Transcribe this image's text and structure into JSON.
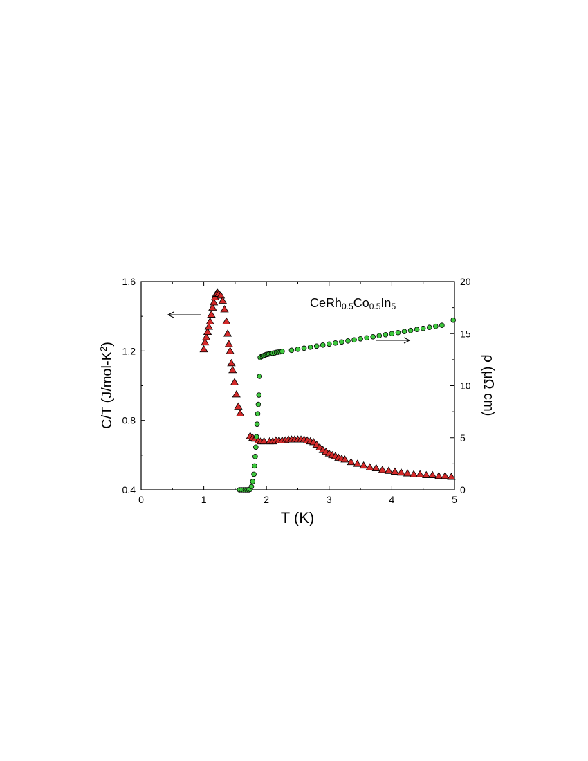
{
  "chart_data": {
    "type": "scatter",
    "annotation": {
      "base": "CeRh",
      "s1": "0.5",
      "mid": "Co",
      "s2": "0.5",
      "mid2": "In",
      "s3": "5"
    },
    "x_axis": {
      "label": "T (K)",
      "range": [
        0,
        5
      ],
      "ticks": [
        0,
        1,
        2,
        3,
        4,
        5
      ]
    },
    "y_left": {
      "label_main": "C/T (J/mol-K",
      "label_sup": "2",
      "label_end": ")",
      "range": [
        0.4,
        1.6
      ],
      "ticks": [
        0.4,
        0.8,
        1.2,
        1.6
      ],
      "tick_labels": [
        "0.4",
        "0.8",
        "1.2",
        "1.6"
      ]
    },
    "y_right": {
      "label": "ρ (μΩ cm)",
      "range": [
        0,
        20
      ],
      "ticks": [
        0,
        5,
        10,
        15,
        20
      ]
    },
    "grid": false,
    "arrows": [
      {
        "points_to": "left axis",
        "series": "C/T"
      },
      {
        "points_to": "right axis",
        "series": "resistivity"
      }
    ],
    "series": [
      {
        "marker": "triangle",
        "color": "#d42a2a",
        "axis": "left",
        "points": [
          [
            1.0,
            1.21
          ],
          [
            1.02,
            1.25
          ],
          [
            1.04,
            1.28
          ],
          [
            1.06,
            1.31
          ],
          [
            1.08,
            1.34
          ],
          [
            1.1,
            1.37
          ],
          [
            1.12,
            1.41
          ],
          [
            1.14,
            1.45
          ],
          [
            1.16,
            1.48
          ],
          [
            1.18,
            1.51
          ],
          [
            1.2,
            1.53
          ],
          [
            1.22,
            1.535
          ],
          [
            1.24,
            1.53
          ],
          [
            1.27,
            1.52
          ],
          [
            1.3,
            1.49
          ],
          [
            1.33,
            1.44
          ],
          [
            1.36,
            1.37
          ],
          [
            1.38,
            1.3
          ],
          [
            1.4,
            1.24
          ],
          [
            1.42,
            1.2
          ],
          [
            1.44,
            1.13
          ],
          [
            1.46,
            1.09
          ],
          [
            1.49,
            1.02
          ],
          [
            1.52,
            0.95
          ],
          [
            1.55,
            0.88
          ],
          [
            1.58,
            0.84
          ],
          [
            1.74,
            0.71
          ],
          [
            1.78,
            0.7
          ],
          [
            1.82,
            0.695
          ],
          [
            1.87,
            0.685
          ],
          [
            1.91,
            0.68
          ],
          [
            1.96,
            0.68
          ],
          [
            2.05,
            0.68
          ],
          [
            2.1,
            0.68
          ],
          [
            2.15,
            0.685
          ],
          [
            2.2,
            0.685
          ],
          [
            2.25,
            0.685
          ],
          [
            2.3,
            0.685
          ],
          [
            2.35,
            0.69
          ],
          [
            2.4,
            0.69
          ],
          [
            2.45,
            0.69
          ],
          [
            2.5,
            0.69
          ],
          [
            2.55,
            0.69
          ],
          [
            2.6,
            0.69
          ],
          [
            2.65,
            0.685
          ],
          [
            2.7,
            0.68
          ],
          [
            2.75,
            0.675
          ],
          [
            2.8,
            0.66
          ],
          [
            2.85,
            0.645
          ],
          [
            2.9,
            0.63
          ],
          [
            2.95,
            0.62
          ],
          [
            3.0,
            0.61
          ],
          [
            3.05,
            0.6
          ],
          [
            3.1,
            0.595
          ],
          [
            3.15,
            0.585
          ],
          [
            3.2,
            0.58
          ],
          [
            3.25,
            0.575
          ],
          [
            3.35,
            0.56
          ],
          [
            3.45,
            0.55
          ],
          [
            3.55,
            0.54
          ],
          [
            3.65,
            0.53
          ],
          [
            3.75,
            0.525
          ],
          [
            3.85,
            0.515
          ],
          [
            3.95,
            0.51
          ],
          [
            4.05,
            0.505
          ],
          [
            4.15,
            0.5
          ],
          [
            4.25,
            0.495
          ],
          [
            4.35,
            0.49
          ],
          [
            4.45,
            0.49
          ],
          [
            4.55,
            0.485
          ],
          [
            4.65,
            0.485
          ],
          [
            4.75,
            0.48
          ],
          [
            4.85,
            0.48
          ],
          [
            4.95,
            0.475
          ]
        ]
      },
      {
        "marker": "circle",
        "color": "#3ec93e",
        "axis": "right",
        "points": [
          [
            1.57,
            0
          ],
          [
            1.6,
            0
          ],
          [
            1.63,
            0
          ],
          [
            1.66,
            0
          ],
          [
            1.69,
            0
          ],
          [
            1.72,
            0
          ],
          [
            1.74,
            0.05
          ],
          [
            1.76,
            0.3
          ],
          [
            1.78,
            0.8
          ],
          [
            1.8,
            1.5
          ],
          [
            1.81,
            2.3
          ],
          [
            1.82,
            3.2
          ],
          [
            1.83,
            4.1
          ],
          [
            1.84,
            5.1
          ],
          [
            1.85,
            6.3
          ],
          [
            1.86,
            7.3
          ],
          [
            1.87,
            8.2
          ],
          [
            1.88,
            9.1
          ],
          [
            1.89,
            10.9
          ],
          [
            1.9,
            12.7
          ],
          [
            1.92,
            12.8
          ],
          [
            1.94,
            12.85
          ],
          [
            1.96,
            12.9
          ],
          [
            1.98,
            12.95
          ],
          [
            2.0,
            13.0
          ],
          [
            2.02,
            13.02
          ],
          [
            2.04,
            13.05
          ],
          [
            2.06,
            13.08
          ],
          [
            2.08,
            13.1
          ],
          [
            2.1,
            13.12
          ],
          [
            2.13,
            13.15
          ],
          [
            2.16,
            13.2
          ],
          [
            2.19,
            13.23
          ],
          [
            2.22,
            13.26
          ],
          [
            2.25,
            13.3
          ],
          [
            2.4,
            13.4
          ],
          [
            2.5,
            13.5
          ],
          [
            2.6,
            13.6
          ],
          [
            2.7,
            13.7
          ],
          [
            2.8,
            13.8
          ],
          [
            2.9,
            13.9
          ],
          [
            3.0,
            14.0
          ],
          [
            3.1,
            14.1
          ],
          [
            3.2,
            14.2
          ],
          [
            3.3,
            14.3
          ],
          [
            3.4,
            14.4
          ],
          [
            3.5,
            14.5
          ],
          [
            3.6,
            14.6
          ],
          [
            3.7,
            14.7
          ],
          [
            3.8,
            14.8
          ],
          [
            3.9,
            14.9
          ],
          [
            4.0,
            15.0
          ],
          [
            4.1,
            15.1
          ],
          [
            4.2,
            15.2
          ],
          [
            4.3,
            15.3
          ],
          [
            4.4,
            15.4
          ],
          [
            4.5,
            15.5
          ],
          [
            4.6,
            15.6
          ],
          [
            4.7,
            15.7
          ],
          [
            4.8,
            15.8
          ],
          [
            4.98,
            16.3
          ]
        ]
      }
    ]
  }
}
